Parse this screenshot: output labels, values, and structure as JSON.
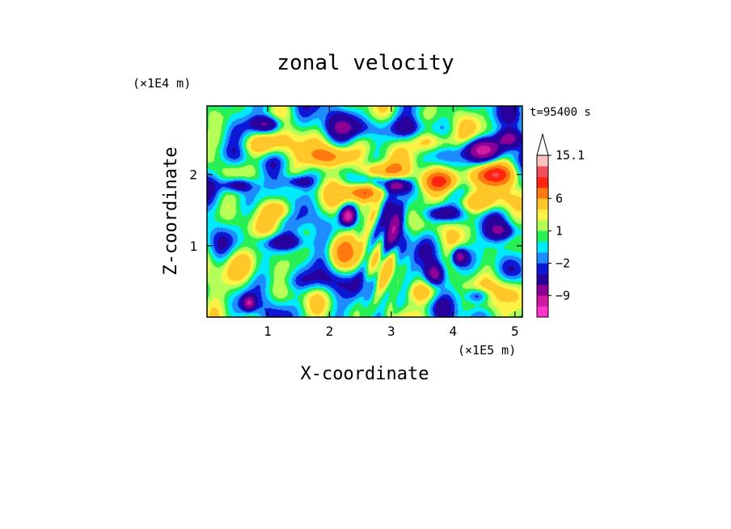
{
  "chart_data": {
    "type": "heatmap",
    "title": "zonal velocity",
    "xlabel": "X-coordinate",
    "ylabel": "Z-coordinate",
    "x_unit": "(×1E5 m)",
    "y_unit": "(×1E4 m)",
    "time_label": "t=95400 s",
    "xlim": [
      0.02,
      5.12
    ],
    "ylim": [
      0.0,
      2.96
    ],
    "x_ticks": [
      1,
      2,
      3,
      4,
      5
    ],
    "y_ticks": [
      1,
      2
    ],
    "colorbar": {
      "levels": [
        -15,
        -12,
        -9,
        -6,
        -3,
        -2,
        -1,
        0,
        1,
        2,
        3,
        6,
        9,
        12,
        15.1
      ],
      "colors": [
        "#ff33cc",
        "#d01aa0",
        "#8c0096",
        "#28009c",
        "#0c18d6",
        "#1e8cff",
        "#00eaff",
        "#26f056",
        "#b4ff58",
        "#fff246",
        "#ffc828",
        "#ff7810",
        "#ff2410",
        "#f0505a",
        "#ffc0c0"
      ],
      "tick_labels": [
        {
          "value": 15.1,
          "label": "15.1"
        },
        {
          "value": 6,
          "label": "6"
        },
        {
          "value": 1,
          "label": "1"
        },
        {
          "value": -2,
          "label": "−2"
        },
        {
          "value": -9,
          "label": "−9"
        }
      ],
      "extend_top": true
    },
    "grid": false,
    "features": [
      {
        "x": 0.9,
        "z": 2.4,
        "v": 8,
        "sx": 0.45,
        "sz": 0.18
      },
      {
        "x": 2.0,
        "z": 2.25,
        "v": 8,
        "sx": 0.4,
        "sz": 0.15
      },
      {
        "x": 2.55,
        "z": 1.75,
        "v": 10,
        "sx": 0.3,
        "sz": 0.12
      },
      {
        "x": 2.8,
        "z": 2.05,
        "v": 7,
        "sx": 0.35,
        "sz": 0.12
      },
      {
        "x": 4.65,
        "z": 2.0,
        "v": 10,
        "sx": 0.35,
        "sz": 0.15
      },
      {
        "x": 3.8,
        "z": 1.9,
        "v": 9,
        "sx": 0.3,
        "sz": 0.15
      },
      {
        "x": 4.4,
        "z": 1.6,
        "v": 6,
        "sx": 0.45,
        "sz": 0.15
      },
      {
        "x": 3.7,
        "z": 2.45,
        "v": 6,
        "sx": 0.4,
        "sz": 0.15
      },
      {
        "x": 2.2,
        "z": 0.9,
        "v": 6,
        "sx": 0.25,
        "sz": 0.25
      },
      {
        "x": 1.2,
        "z": 1.5,
        "v": 6,
        "sx": 0.25,
        "sz": 0.15
      },
      {
        "x": 0.6,
        "z": 0.75,
        "v": 5,
        "sx": 0.35,
        "sz": 0.25
      },
      {
        "x": 4.9,
        "z": 0.4,
        "v": 5,
        "sx": 0.25,
        "sz": 0.2
      },
      {
        "x": 3.5,
        "z": 0.35,
        "v": 4,
        "sx": 0.3,
        "sz": 0.15
      },
      {
        "x": 1.0,
        "z": 2.7,
        "v": -8,
        "sx": 0.25,
        "sz": 0.12
      },
      {
        "x": 4.5,
        "z": 2.35,
        "v": -10,
        "sx": 0.35,
        "sz": 0.15
      },
      {
        "x": 4.9,
        "z": 2.5,
        "v": -8,
        "sx": 0.2,
        "sz": 0.12
      },
      {
        "x": 2.3,
        "z": 1.42,
        "v": -12,
        "sx": 0.12,
        "sz": 0.12
      },
      {
        "x": 3.1,
        "z": 1.85,
        "v": -8,
        "sx": 0.2,
        "sz": 0.1
      },
      {
        "x": 3.8,
        "z": 1.45,
        "v": -6,
        "sx": 0.3,
        "sz": 0.12
      },
      {
        "x": 4.1,
        "z": 0.85,
        "v": -8,
        "sx": 0.12,
        "sz": 0.12
      },
      {
        "x": 3.7,
        "z": 0.6,
        "v": -8,
        "sx": 0.15,
        "sz": 0.15
      },
      {
        "x": 1.25,
        "z": 1.05,
        "v": -6,
        "sx": 0.4,
        "sz": 0.12
      },
      {
        "x": 0.5,
        "z": 1.85,
        "v": -6,
        "sx": 0.25,
        "sz": 0.1
      },
      {
        "x": 1.5,
        "z": 1.9,
        "v": -5,
        "sx": 0.25,
        "sz": 0.1
      },
      {
        "x": 0.5,
        "z": 2.3,
        "v": -4,
        "sx": 0.5,
        "sz": 0.2
      },
      {
        "x": 2.3,
        "z": 2.65,
        "v": -4,
        "sx": 0.5,
        "sz": 0.15
      },
      {
        "x": 3.25,
        "z": 2.65,
        "v": -3,
        "sx": 0.3,
        "sz": 0.15
      },
      {
        "x": 1.6,
        "z": 0.5,
        "v": -3,
        "sx": 0.6,
        "sz": 0.15
      },
      {
        "x": 3.05,
        "z": 1.3,
        "v": -5,
        "sx": 0.15,
        "sz": 0.3
      },
      {
        "x": 4.8,
        "z": 1.2,
        "v": -5,
        "sx": 0.25,
        "sz": 0.12
      },
      {
        "x": 0.7,
        "z": 0.2,
        "v": -8,
        "sx": 0.1,
        "sz": 0.1
      },
      {
        "x": 4.4,
        "z": 0.3,
        "v": -5,
        "sx": 0.2,
        "sz": 0.1
      }
    ]
  }
}
